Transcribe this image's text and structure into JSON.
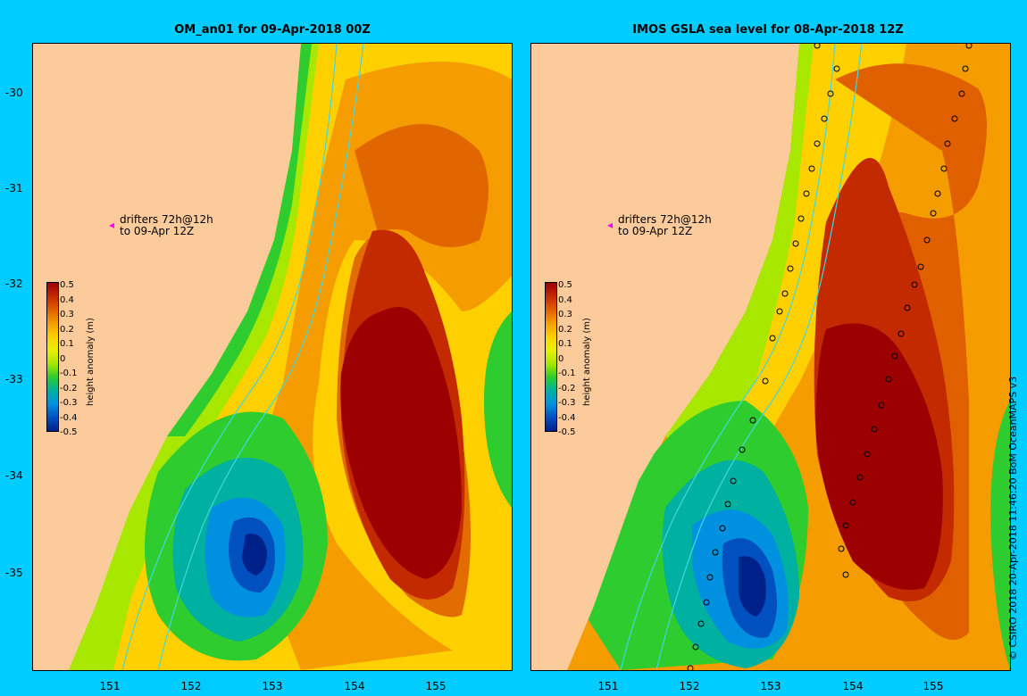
{
  "left_panel": {
    "title": "OM_an01 for 09-Apr-2018 00Z",
    "drifters_line1": "drifters 72h@12h",
    "drifters_line2": "to 09-Apr 12Z"
  },
  "right_panel": {
    "title": "IMOS GSLA sea level  for 08-Apr-2018 12Z",
    "drifters_line1": "drifters 72h@12h",
    "drifters_line2": "to 09-Apr 12Z"
  },
  "axes": {
    "y_ticks": [
      "-30",
      "-31",
      "-32",
      "-33",
      "-34",
      "-35"
    ],
    "x_ticks": [
      "151",
      "152",
      "153",
      "154",
      "155"
    ]
  },
  "colorbar": {
    "title": "height anomaly (m)",
    "labels": [
      "0.5",
      "0.4",
      "0.3",
      "0.2",
      "0.1",
      "0",
      "-0.1",
      "-0.2",
      "-0.3",
      "-0.4",
      "-0.5"
    ],
    "colors": [
      "#9c0000",
      "#c32a00",
      "#e06000",
      "#f59d00",
      "#ffd000",
      "#e8f000",
      "#a8e800",
      "#2ecc2e",
      "#00b0a0",
      "#0090e0",
      "#0050c0",
      "#00208a"
    ]
  },
  "credit": "© CSIRO 2018   20-Apr-2018 11:46:20 BoM OceanMAPS v3"
}
